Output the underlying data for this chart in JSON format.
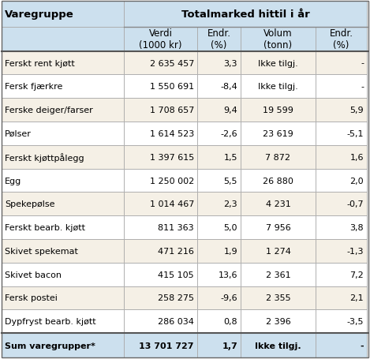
{
  "title_left": "Varegruppe",
  "title_right": "Totalmarked hittil i år",
  "col_headers": [
    "Verdi\n(1000 kr)",
    "Endr.\n(%)",
    "Volum\n(tonn)",
    "Endr.\n(%)"
  ],
  "rows": [
    [
      "Ferskt rent kjøtt",
      "2 635 457",
      "3,3",
      "Ikke tilgj.",
      "-"
    ],
    [
      "Fersk fjærkre",
      "1 550 691",
      "-8,4",
      "Ikke tilgj.",
      "-"
    ],
    [
      "Ferske deiger/farser",
      "1 708 657",
      "9,4",
      "19 599",
      "5,9"
    ],
    [
      "Pølser",
      "1 614 523",
      "-2,6",
      "23 619",
      "-5,1"
    ],
    [
      "Ferskt kjøttpålegg",
      "1 397 615",
      "1,5",
      "7 872",
      "1,6"
    ],
    [
      "Egg",
      "1 250 002",
      "5,5",
      "26 880",
      "2,0"
    ],
    [
      "Spekepølse",
      "1 014 467",
      "2,3",
      "4 231",
      "-0,7"
    ],
    [
      "Ferskt bearb. kjøtt",
      "811 363",
      "5,0",
      "7 956",
      "3,8"
    ],
    [
      "Skivet spekemat",
      "471 216",
      "1,9",
      "1 274",
      "-1,3"
    ],
    [
      "Skivet bacon",
      "415 105",
      "13,6",
      "2 361",
      "7,2"
    ],
    [
      "Fersk postei",
      "258 275",
      "-9,6",
      "2 355",
      "2,1"
    ],
    [
      "Dypfryst bearb. kjøtt",
      "286 034",
      "0,8",
      "2 396",
      "-3,5"
    ]
  ],
  "footer": [
    "Sum varegrupper*",
    "13 701 727",
    "1,7",
    "Ikke tilgj.",
    "-"
  ],
  "header_bg": "#cce0ee",
  "odd_row_bg": "#f5f0e6",
  "even_row_bg": "#ffffff",
  "footer_bg": "#cce0ee",
  "border_color": "#aaaaaa",
  "text_color": "#000000",
  "title_fontsize": 9.5,
  "header_fontsize": 8.5,
  "cell_fontsize": 8.0
}
